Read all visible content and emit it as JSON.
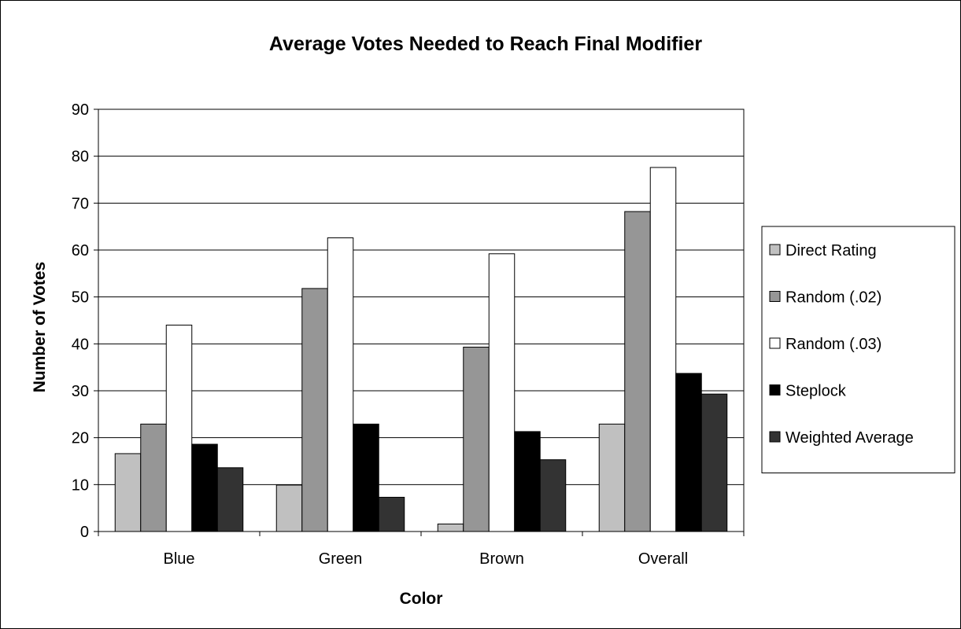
{
  "chart_data": {
    "type": "bar",
    "title": "Average Votes Needed to Reach Final Modifier",
    "xlabel": "Color",
    "ylabel": "Number of Votes",
    "categories": [
      "Blue",
      "Green",
      "Brown",
      "Overall"
    ],
    "ylim": [
      0,
      90
    ],
    "yticks": [
      0,
      10,
      20,
      30,
      40,
      50,
      60,
      70,
      80,
      90
    ],
    "grid": true,
    "legend_position": "right",
    "series": [
      {
        "name": "Direct Rating",
        "color": "#c0c0c0",
        "values": [
          16.6,
          9.9,
          1.6,
          22.9
        ]
      },
      {
        "name": "Random (.02)",
        "color": "#969696",
        "values": [
          22.9,
          51.8,
          39.3,
          68.2
        ]
      },
      {
        "name": "Random (.03)",
        "color": "#ffffff",
        "values": [
          44.0,
          62.6,
          59.2,
          77.6
        ]
      },
      {
        "name": "Steplock",
        "color": "#000000",
        "values": [
          18.6,
          22.9,
          21.3,
          33.7
        ]
      },
      {
        "name": "Weighted Average",
        "color": "#333333",
        "values": [
          13.6,
          7.3,
          15.3,
          29.3
        ]
      }
    ]
  }
}
